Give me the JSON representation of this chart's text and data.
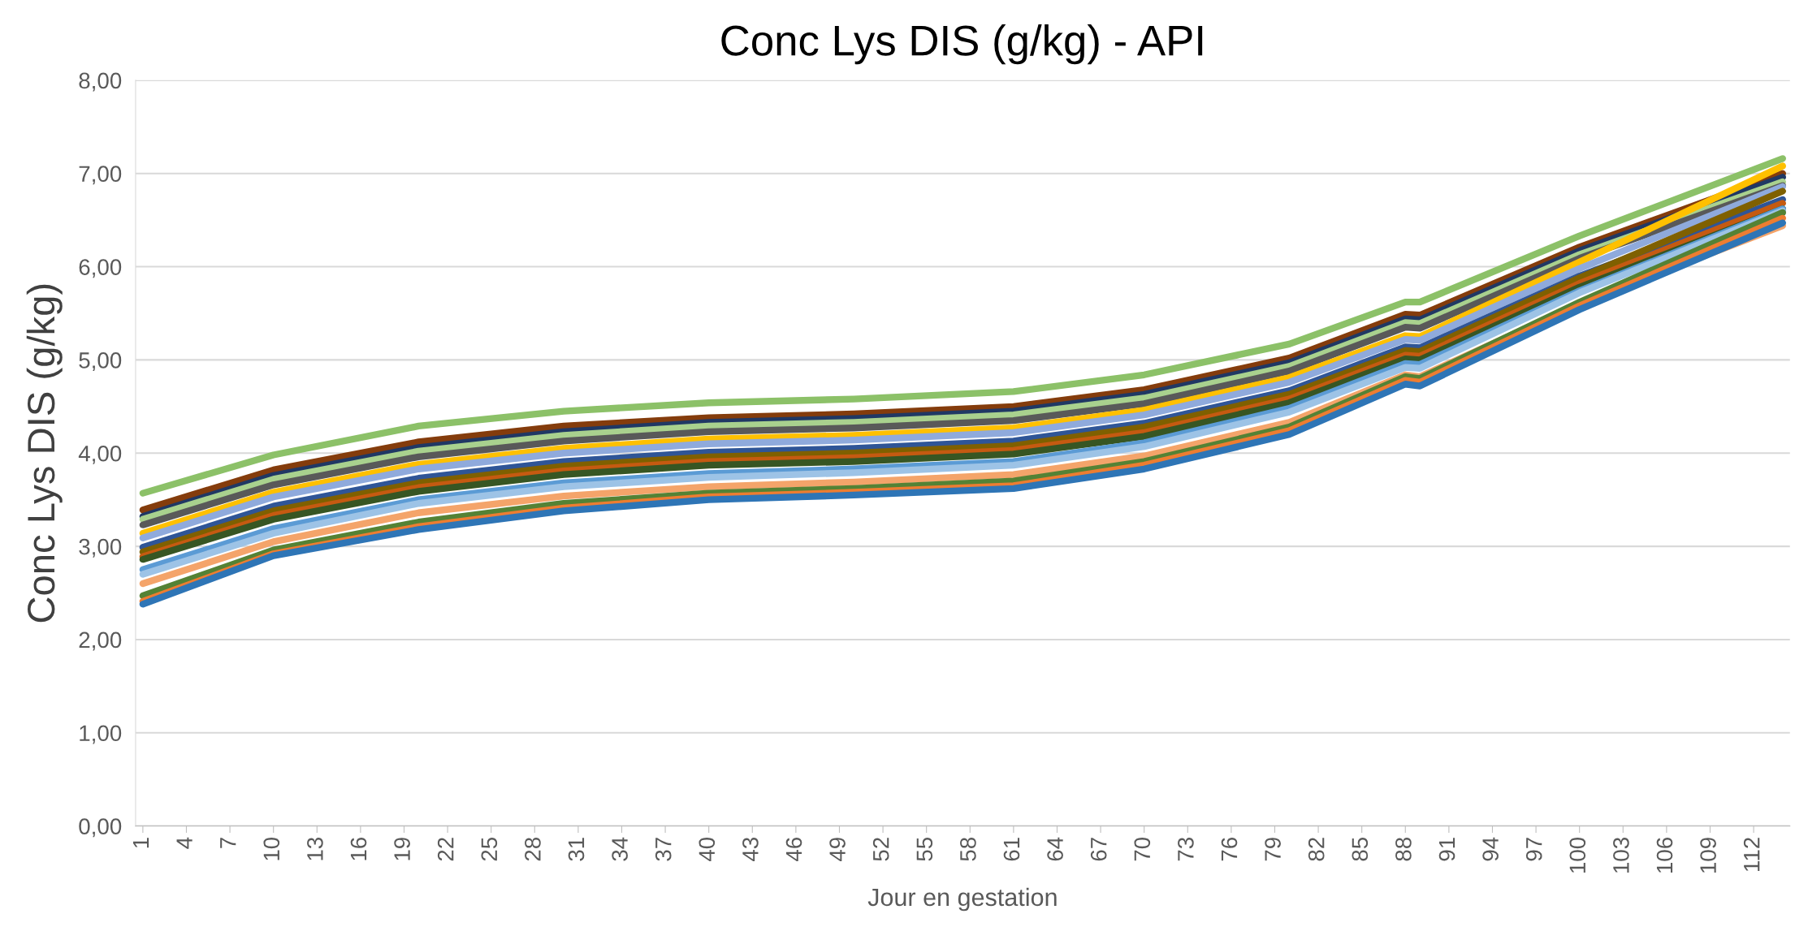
{
  "chart_data": {
    "type": "line",
    "title": "Conc Lys DIS (g/kg) - API",
    "xlabel": "Jour en gestation",
    "ylabel": "Conc Lys DIS (g/kg)",
    "xlim": [
      0.5,
      114.5
    ],
    "xticks": [
      1,
      4,
      7,
      10,
      13,
      16,
      19,
      22,
      25,
      28,
      31,
      34,
      37,
      40,
      43,
      46,
      49,
      52,
      55,
      58,
      61,
      64,
      67,
      70,
      73,
      76,
      79,
      82,
      85,
      88,
      91,
      94,
      97,
      100,
      103,
      106,
      109,
      112
    ],
    "ylim": [
      0,
      8
    ],
    "yticks": [
      {
        "value": 0,
        "label": "0,00"
      },
      {
        "value": 1,
        "label": "1,00"
      },
      {
        "value": 2,
        "label": "2,00"
      },
      {
        "value": 3,
        "label": "3,00"
      },
      {
        "value": 4,
        "label": "4,00"
      },
      {
        "value": 5,
        "label": "5,00"
      },
      {
        "value": 6,
        "label": "6,00"
      },
      {
        "value": 7,
        "label": "7,00"
      },
      {
        "value": 8,
        "label": "8,00"
      }
    ],
    "grid": "y",
    "marker": "none",
    "line_style": "solid",
    "x": [
      1,
      10,
      20,
      30,
      40,
      50,
      61,
      70,
      80,
      88,
      89,
      100,
      114
    ],
    "series": [
      {
        "color": "#8cc168",
        "values": [
          3.57,
          3.98,
          4.29,
          4.45,
          4.54,
          4.58,
          4.66,
          4.84,
          5.17,
          5.62,
          5.62,
          6.33,
          7.16
        ]
      },
      {
        "color": "#843c0c",
        "values": [
          3.39,
          3.82,
          4.12,
          4.29,
          4.38,
          4.42,
          4.5,
          4.68,
          5.02,
          5.49,
          5.48,
          6.21,
          7.0
        ]
      },
      {
        "color": "#203864",
        "values": [
          3.32,
          3.76,
          4.06,
          4.23,
          4.33,
          4.37,
          4.45,
          4.63,
          4.97,
          5.44,
          5.43,
          6.17,
          6.96
        ]
      },
      {
        "color": "#a9d18e",
        "values": [
          3.29,
          3.72,
          4.02,
          4.19,
          4.29,
          4.33,
          4.41,
          4.59,
          4.93,
          5.4,
          5.39,
          6.13,
          6.91
        ]
      },
      {
        "color": "#595959",
        "values": [
          3.23,
          3.66,
          3.96,
          4.13,
          4.23,
          4.27,
          4.35,
          4.53,
          4.88,
          5.35,
          5.34,
          6.09,
          6.87
        ]
      },
      {
        "color": "#ffc000",
        "values": [
          3.14,
          3.58,
          3.88,
          4.05,
          4.15,
          4.19,
          4.27,
          4.46,
          4.81,
          5.26,
          5.25,
          6.05,
          7.08
        ]
      },
      {
        "color": "#8faadc",
        "values": [
          3.09,
          3.53,
          3.83,
          4.0,
          4.1,
          4.14,
          4.22,
          4.41,
          4.76,
          5.22,
          5.21,
          5.98,
          6.86
        ]
      },
      {
        "color": "#2f5597",
        "values": [
          2.99,
          3.43,
          3.73,
          3.91,
          4.01,
          4.05,
          4.13,
          4.32,
          4.67,
          5.14,
          5.13,
          5.9,
          6.72
        ]
      },
      {
        "color": "#7f6000",
        "values": [
          2.94,
          3.38,
          3.68,
          3.86,
          3.96,
          4.0,
          4.08,
          4.28,
          4.63,
          5.1,
          5.09,
          5.88,
          6.81
        ]
      },
      {
        "color": "#c55a11",
        "values": [
          2.89,
          3.33,
          3.63,
          3.81,
          3.91,
          3.95,
          4.03,
          4.22,
          4.58,
          5.05,
          5.04,
          5.82,
          6.68
        ]
      },
      {
        "color": "#375623",
        "values": [
          2.86,
          3.29,
          3.59,
          3.77,
          3.87,
          3.91,
          3.99,
          4.18,
          4.54,
          5.01,
          5.0,
          5.78,
          6.62
        ]
      },
      {
        "color": "#5b9bd5",
        "values": [
          2.75,
          3.19,
          3.5,
          3.68,
          3.78,
          3.83,
          3.91,
          4.11,
          4.48,
          4.96,
          4.95,
          5.74,
          6.62
        ]
      },
      {
        "color": "#9dc3e6",
        "values": [
          2.7,
          3.14,
          3.46,
          3.64,
          3.74,
          3.79,
          3.87,
          4.07,
          4.44,
          4.92,
          4.91,
          5.72,
          6.6
        ]
      },
      {
        "color": "#f4a46a",
        "values": [
          2.6,
          3.05,
          3.36,
          3.54,
          3.64,
          3.69,
          3.77,
          3.97,
          4.33,
          4.84,
          4.82,
          5.6,
          6.44
        ]
      },
      {
        "color": "#548235",
        "values": [
          2.47,
          2.96,
          3.26,
          3.46,
          3.57,
          3.62,
          3.7,
          3.91,
          4.28,
          4.82,
          4.8,
          5.62,
          6.58
        ]
      },
      {
        "color": "#ed7d31",
        "values": [
          2.41,
          2.92,
          3.21,
          3.41,
          3.53,
          3.58,
          3.65,
          3.87,
          4.24,
          4.78,
          4.76,
          5.58,
          6.52
        ]
      },
      {
        "color": "#2e75b6",
        "values": [
          2.38,
          2.9,
          3.18,
          3.38,
          3.5,
          3.55,
          3.62,
          3.83,
          4.2,
          4.74,
          4.72,
          5.54,
          6.47
        ]
      }
    ]
  }
}
